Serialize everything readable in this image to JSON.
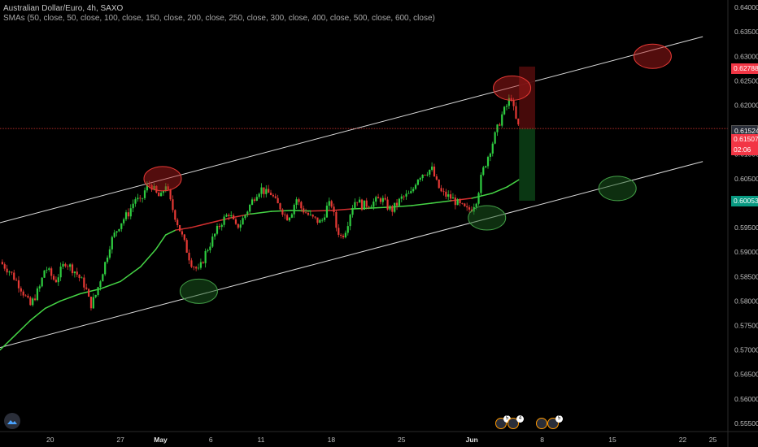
{
  "legend": {
    "title": "Australian Dollar/Euro, 4h, SAXO",
    "indicator": "SMAs (50, close, 50, close, 100, close, 150, close, 200, close, 250, close, 300, close, 400, close, 500, close, 600, close)"
  },
  "price_labels": {
    "top_red": "0.62788",
    "current": "0.61524",
    "entry_red": "0.61507",
    "countdown": "02:06",
    "target_green": "0.60053"
  },
  "events": {
    "badge_1": "5",
    "badge_2": "4",
    "badge_3": "5"
  },
  "colors": {
    "background": "#000000",
    "up": "#26a69a",
    "down": "#ef5350",
    "up_candle": "#2ecc40",
    "down_candle": "#e53935",
    "sma": "#45d445",
    "sma_red": "#d32f2f",
    "channel": "#d9d9d9",
    "resistance_circle": "#b71c1c",
    "support_circle": "#1b5e20"
  },
  "chart_data": {
    "type": "candlestick",
    "symbol": "Australian Dollar/Euro",
    "interval": "4h",
    "source": "SAXO",
    "ylim": [
      0.5535,
      0.6415
    ],
    "y_ticks": [
      "0.64000",
      "0.63500",
      "0.63000",
      "0.62500",
      "0.62000",
      "0.61500",
      "0.61000",
      "0.60500",
      "0.60000",
      "0.59500",
      "0.59000",
      "0.58500",
      "0.58000",
      "0.57500",
      "0.57000",
      "0.56500",
      "0.56000",
      "0.55500"
    ],
    "x_ticks": [
      {
        "label": "20",
        "day": 20
      },
      {
        "label": "27",
        "day": 27
      },
      {
        "label": "May",
        "day": 31,
        "bold": true
      },
      {
        "label": "6",
        "day": 36
      },
      {
        "label": "11",
        "day": 41
      },
      {
        "label": "18",
        "day": 48
      },
      {
        "label": "25",
        "day": 55
      },
      {
        "label": "Jun",
        "day": 62,
        "bold": true
      },
      {
        "label": "8",
        "day": 69
      },
      {
        "label": "15",
        "day": 76
      },
      {
        "label": "22",
        "day": 83
      },
      {
        "label": "25",
        "day": 86
      }
    ],
    "x_range_days": [
      15.0,
      87.5
    ],
    "price_path": [
      [
        15.0,
        0.588
      ],
      [
        16.0,
        0.586
      ],
      [
        17.0,
        0.583
      ],
      [
        18.0,
        0.579
      ],
      [
        19.0,
        0.583
      ],
      [
        19.5,
        0.587
      ],
      [
        20.5,
        0.584
      ],
      [
        21.5,
        0.588
      ],
      [
        22.5,
        0.586
      ],
      [
        23.5,
        0.583
      ],
      [
        24.0,
        0.579
      ],
      [
        24.5,
        0.581
      ],
      [
        25.5,
        0.588
      ],
      [
        26.0,
        0.592
      ],
      [
        27.0,
        0.596
      ],
      [
        27.8,
        0.598
      ],
      [
        28.5,
        0.601
      ],
      [
        29.0,
        0.6
      ],
      [
        29.5,
        0.603
      ],
      [
        30.0,
        0.604
      ],
      [
        30.5,
        0.602
      ],
      [
        31.0,
        0.601
      ],
      [
        31.5,
        0.604
      ],
      [
        32.0,
        0.6
      ],
      [
        33.0,
        0.594
      ],
      [
        34.0,
        0.588
      ],
      [
        34.8,
        0.586
      ],
      [
        35.5,
        0.59
      ],
      [
        36.0,
        0.592
      ],
      [
        37.0,
        0.596
      ],
      [
        37.8,
        0.598
      ],
      [
        38.5,
        0.595
      ],
      [
        39.0,
        0.596
      ],
      [
        40.0,
        0.6
      ],
      [
        40.5,
        0.602
      ],
      [
        41.0,
        0.603
      ],
      [
        41.5,
        0.602
      ],
      [
        42.0,
        0.602
      ],
      [
        42.5,
        0.6
      ],
      [
        43.0,
        0.599
      ],
      [
        43.5,
        0.597
      ],
      [
        44.0,
        0.598
      ],
      [
        44.5,
        0.601
      ],
      [
        45.0,
        0.599
      ],
      [
        46.0,
        0.597
      ],
      [
        47.0,
        0.596
      ],
      [
        47.5,
        0.599
      ],
      [
        48.0,
        0.6
      ],
      [
        48.5,
        0.595
      ],
      [
        49.0,
        0.593
      ],
      [
        49.5,
        0.595
      ],
      [
        50.0,
        0.599
      ],
      [
        50.5,
        0.601
      ],
      [
        51.0,
        0.5995
      ],
      [
        52.0,
        0.6
      ],
      [
        53.0,
        0.601
      ],
      [
        53.5,
        0.5995
      ],
      [
        54.0,
        0.5985
      ],
      [
        55.0,
        0.601
      ],
      [
        56.0,
        0.602
      ],
      [
        56.5,
        0.605
      ],
      [
        57.0,
        0.606
      ],
      [
        58.0,
        0.607
      ],
      [
        58.5,
        0.604
      ],
      [
        59.0,
        0.602
      ],
      [
        60.0,
        0.601
      ],
      [
        60.8,
        0.5995
      ],
      [
        61.5,
        0.5985
      ],
      [
        62.0,
        0.599
      ],
      [
        62.5,
        0.601
      ],
      [
        63.0,
        0.606
      ],
      [
        63.5,
        0.609
      ],
      [
        64.0,
        0.612
      ],
      [
        64.5,
        0.615
      ],
      [
        65.0,
        0.618
      ],
      [
        65.5,
        0.62
      ],
      [
        65.9,
        0.622
      ],
      [
        66.3,
        0.6175
      ],
      [
        66.7,
        0.6152
      ]
    ],
    "sma_series": [
      [
        15.0,
        0.57
      ],
      [
        16.5,
        0.573
      ],
      [
        18.0,
        0.576
      ],
      [
        19.5,
        0.5785
      ],
      [
        21.0,
        0.58
      ],
      [
        23.0,
        0.5815
      ],
      [
        25.0,
        0.5825
      ],
      [
        27.0,
        0.584
      ],
      [
        29.0,
        0.587
      ],
      [
        30.5,
        0.5905
      ],
      [
        31.5,
        0.5935
      ],
      [
        32.5,
        0.5945
      ],
      [
        34.0,
        0.595
      ],
      [
        36.0,
        0.596
      ],
      [
        38.0,
        0.597
      ],
      [
        40.0,
        0.5978
      ],
      [
        42.0,
        0.5983
      ],
      [
        44.0,
        0.5985
      ],
      [
        46.0,
        0.5984
      ],
      [
        48.0,
        0.5985
      ],
      [
        50.0,
        0.5988
      ],
      [
        52.0,
        0.599
      ],
      [
        54.0,
        0.5992
      ],
      [
        56.0,
        0.5995
      ],
      [
        58.0,
        0.6
      ],
      [
        60.0,
        0.6005
      ],
      [
        62.0,
        0.601
      ],
      [
        64.0,
        0.602
      ],
      [
        65.5,
        0.6033
      ],
      [
        66.7,
        0.6048
      ]
    ],
    "upper_channel": [
      [
        15.0,
        0.596
      ],
      [
        85.0,
        0.634
      ]
    ],
    "lower_channel": [
      [
        15.0,
        0.5705
      ],
      [
        85.0,
        0.6085
      ]
    ],
    "position": {
      "entry": 0.6152,
      "stop": 0.6279,
      "target": 0.6005,
      "start_day": 66.7,
      "end_day": 68.3
    },
    "resistance_touches": [
      [
        31.2,
        0.605
      ],
      [
        66.0,
        0.6235
      ],
      [
        80.0,
        0.63
      ]
    ],
    "support_touches": [
      [
        34.8,
        0.582
      ],
      [
        63.5,
        0.597
      ],
      [
        76.5,
        0.603
      ]
    ]
  }
}
